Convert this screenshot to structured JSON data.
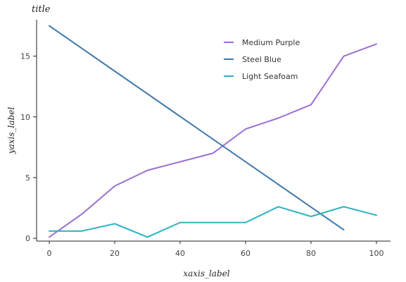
{
  "chart_data": {
    "type": "line",
    "title": "title",
    "xlabel": "xaxis_label",
    "ylabel": "yaxis_label",
    "xlim": [
      0,
      100
    ],
    "ylim": [
      0,
      18
    ],
    "xticks": [
      0,
      20,
      40,
      60,
      80,
      100
    ],
    "yticks": [
      0,
      5,
      10,
      15
    ],
    "grid": false,
    "legend_position": "top-right",
    "series": [
      {
        "name": "Medium Purple",
        "color": "#9b6fd3",
        "x": [
          0,
          10,
          20,
          30,
          40,
          50,
          60,
          70,
          80,
          90,
          100
        ],
        "y": [
          0.1,
          2.0,
          4.3,
          5.6,
          6.3,
          7.0,
          9.0,
          9.9,
          11.0,
          15.0,
          16.0
        ]
      },
      {
        "name": "Steel Blue",
        "color": "#3f77a9",
        "x": [
          0,
          90
        ],
        "y": [
          17.5,
          0.7
        ]
      },
      {
        "name": "Light Seafoam",
        "color": "#2ab3bf",
        "x": [
          0,
          10,
          20,
          30,
          40,
          50,
          60,
          70,
          80,
          90,
          100
        ],
        "y": [
          0.6,
          0.6,
          1.2,
          0.1,
          1.3,
          1.3,
          1.3,
          2.6,
          1.8,
          2.6,
          1.9
        ]
      }
    ]
  }
}
